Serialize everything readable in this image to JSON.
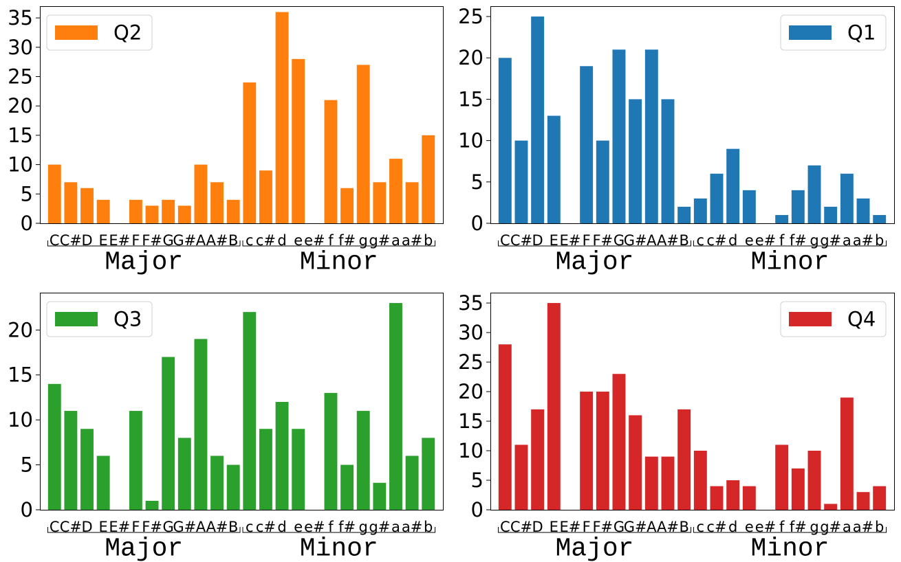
{
  "chart_data": [
    {
      "type": "bar",
      "categories": [
        "C",
        "C#",
        "D",
        "E",
        "E#",
        "F",
        "F#",
        "G",
        "G#",
        "A",
        "A#",
        "B",
        "c",
        "c#",
        "d",
        "e",
        "e#",
        "f",
        "f#",
        "g",
        "g#",
        "a",
        "a#",
        "b"
      ],
      "series": [
        {
          "name": "Q2",
          "values": [
            10,
            7,
            6,
            4,
            0,
            4,
            3,
            4,
            3,
            10,
            7,
            4,
            24,
            9,
            36,
            28,
            0,
            21,
            6,
            27,
            7,
            11,
            7,
            15
          ]
        }
      ],
      "ylim": [
        0,
        37
      ],
      "yticks": [
        0,
        5,
        10,
        15,
        20,
        25,
        30,
        35
      ],
      "group_labels": [
        "Major",
        "Minor"
      ],
      "legend_position": "upper left",
      "color": "#ff7f0e"
    },
    {
      "type": "bar",
      "categories": [
        "C",
        "C#",
        "D",
        "E",
        "E#",
        "F",
        "F#",
        "G",
        "G#",
        "A",
        "A#",
        "B",
        "c",
        "c#",
        "d",
        "e",
        "e#",
        "f",
        "f#",
        "g",
        "g#",
        "a",
        "a#",
        "b"
      ],
      "series": [
        {
          "name": "Q1",
          "values": [
            20,
            10,
            25,
            13,
            0,
            19,
            10,
            21,
            15,
            21,
            15,
            2,
            3,
            6,
            9,
            4,
            0,
            1,
            4,
            7,
            2,
            6,
            3,
            1
          ]
        }
      ],
      "ylim": [
        0,
        26.25
      ],
      "yticks": [
        0,
        5,
        10,
        15,
        20,
        25
      ],
      "group_labels": [
        "Major",
        "Minor"
      ],
      "legend_position": "upper right",
      "color": "#1f77b4"
    },
    {
      "type": "bar",
      "categories": [
        "C",
        "C#",
        "D",
        "E",
        "E#",
        "F",
        "F#",
        "G",
        "G#",
        "A",
        "A#",
        "B",
        "c",
        "c#",
        "d",
        "e",
        "e#",
        "f",
        "f#",
        "g",
        "g#",
        "a",
        "a#",
        "b"
      ],
      "series": [
        {
          "name": "Q3",
          "values": [
            14,
            11,
            9,
            6,
            0,
            11,
            1,
            17,
            8,
            19,
            6,
            5,
            22,
            9,
            12,
            9,
            0,
            13,
            5,
            11,
            3,
            23,
            6,
            8
          ]
        }
      ],
      "ylim": [
        0,
        24.15
      ],
      "yticks": [
        0,
        5,
        10,
        15,
        20
      ],
      "group_labels": [
        "Major",
        "Minor"
      ],
      "legend_position": "upper left",
      "color": "#2ca02c"
    },
    {
      "type": "bar",
      "categories": [
        "C",
        "C#",
        "D",
        "E",
        "E#",
        "F",
        "F#",
        "G",
        "G#",
        "A",
        "A#",
        "B",
        "c",
        "c#",
        "d",
        "e",
        "e#",
        "f",
        "f#",
        "g",
        "g#",
        "a",
        "a#",
        "b"
      ],
      "series": [
        {
          "name": "Q4",
          "values": [
            28,
            11,
            17,
            35,
            0,
            20,
            20,
            23,
            16,
            9,
            9,
            17,
            10,
            4,
            5,
            4,
            0,
            11,
            7,
            10,
            1,
            19,
            3,
            4
          ]
        }
      ],
      "ylim": [
        0,
        36.75
      ],
      "yticks": [
        0,
        5,
        10,
        15,
        20,
        25,
        30,
        35
      ],
      "group_labels": [
        "Major",
        "Minor"
      ],
      "legend_position": "upper right",
      "color": "#d62728"
    }
  ]
}
